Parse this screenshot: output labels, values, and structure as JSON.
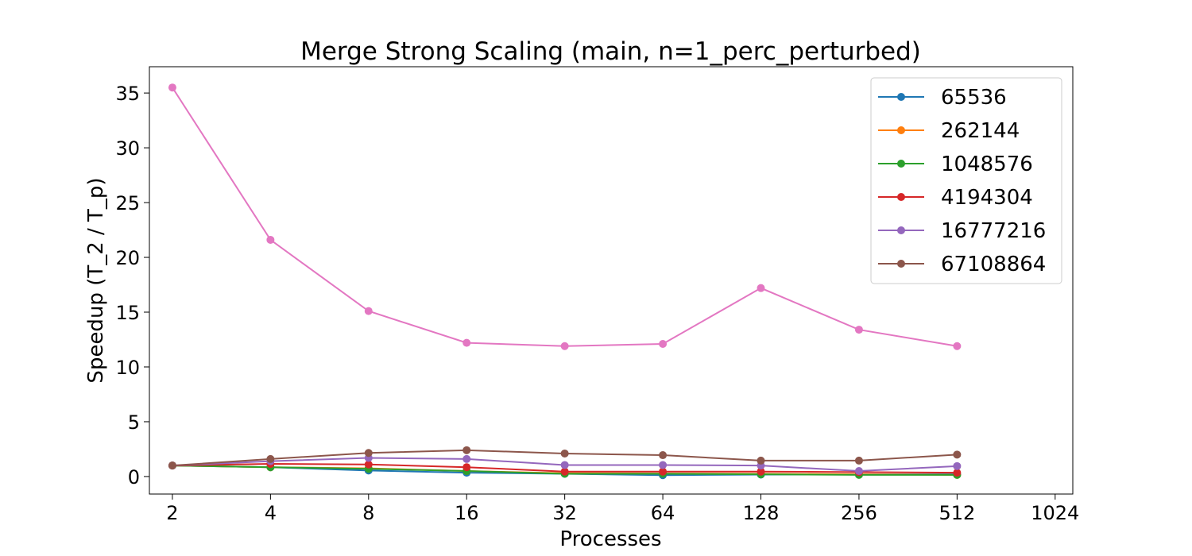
{
  "chart_data": {
    "type": "line",
    "title": "Merge Strong Scaling (main, n=1_perc_perturbed)",
    "xlabel": "Processes",
    "ylabel": "Speedup (T_2 / T_p)",
    "x_scale": "log2",
    "x": [
      2,
      4,
      8,
      16,
      32,
      64,
      128,
      256,
      512
    ],
    "xticks": [
      "2",
      "4",
      "8",
      "16",
      "32",
      "64",
      "128",
      "256",
      "512",
      "1024"
    ],
    "yticks": [
      "0",
      "5",
      "10",
      "15",
      "20",
      "25",
      "30",
      "35"
    ],
    "xlim": [
      1.7,
      1160
    ],
    "ylim": [
      -1.6,
      37.4
    ],
    "grid": false,
    "legend_position": "top-right",
    "series": [
      {
        "name": "65536",
        "color": "#1f77b4",
        "values": [
          1.0,
          0.85,
          0.55,
          0.35,
          0.25,
          0.12,
          0.18,
          0.2,
          0.2
        ]
      },
      {
        "name": "262144",
        "color": "#ff7f0e",
        "values": [
          1.0,
          0.85,
          0.75,
          0.5,
          0.3,
          0.28,
          0.25,
          0.2,
          0.15
        ]
      },
      {
        "name": "1048576",
        "color": "#2ca02c",
        "values": [
          1.0,
          0.85,
          0.7,
          0.5,
          0.25,
          0.25,
          0.2,
          0.15,
          0.15
        ]
      },
      {
        "name": "4194304",
        "color": "#d62728",
        "values": [
          1.0,
          1.15,
          1.1,
          0.85,
          0.45,
          0.45,
          0.45,
          0.4,
          0.35
        ]
      },
      {
        "name": "16777216",
        "color": "#9467bd",
        "values": [
          1.0,
          1.4,
          1.7,
          1.6,
          1.05,
          1.05,
          1.0,
          0.5,
          0.95
        ]
      },
      {
        "name": "67108864",
        "color": "#8c564b",
        "values": [
          1.0,
          1.6,
          2.15,
          2.4,
          2.1,
          1.95,
          1.45,
          1.45,
          2.0
        ]
      },
      {
        "name": "",
        "color": "#e377c2",
        "values": [
          35.5,
          21.6,
          15.1,
          12.2,
          11.9,
          12.1,
          17.2,
          13.4,
          11.9
        ]
      }
    ]
  }
}
